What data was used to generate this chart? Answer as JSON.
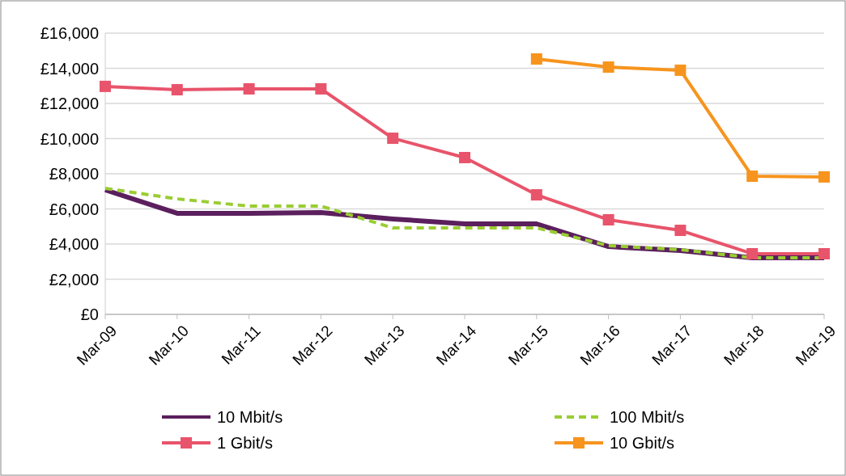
{
  "chart_data": {
    "type": "line",
    "categories": [
      "Mar-09",
      "Mar-10",
      "Mar-11",
      "Mar-12",
      "Mar-13",
      "Mar-14",
      "Mar-15",
      "Mar-16",
      "Mar-17",
      "Mar-18",
      "Mar-19"
    ],
    "series": [
      {
        "name": "10 Mbit/s",
        "color": "#5b1f5e",
        "marker": "none",
        "line_style": "solid",
        "values": [
          7080,
          5750,
          5750,
          5790,
          5430,
          5150,
          5150,
          3860,
          3630,
          3220,
          3220
        ]
      },
      {
        "name": "100 Mbit/s",
        "color": "#9acd32",
        "marker": "none",
        "line_style": "dashed",
        "values": [
          7170,
          6570,
          6160,
          6160,
          4920,
          4920,
          4920,
          3910,
          3680,
          3220,
          3220
        ]
      },
      {
        "name": "1 Gbit/s",
        "color": "#e8546b",
        "marker": "square",
        "line_style": "solid",
        "values": [
          12970,
          12780,
          12830,
          12830,
          10020,
          8920,
          6800,
          5380,
          4780,
          3450,
          3450
        ]
      },
      {
        "name": "10 Gbit/s",
        "color": "#f7941d",
        "marker": "square",
        "line_style": "solid",
        "values": [
          null,
          null,
          null,
          null,
          null,
          null,
          14530,
          14070,
          13890,
          7860,
          7820
        ]
      }
    ],
    "ylim": [
      0,
      16000
    ],
    "yticks": [
      {
        "value": 0,
        "label": "£0"
      },
      {
        "value": 2000,
        "label": "£2,000"
      },
      {
        "value": 4000,
        "label": "£4,000"
      },
      {
        "value": 6000,
        "label": "£6,000"
      },
      {
        "value": 8000,
        "label": "£8,000"
      },
      {
        "value": 10000,
        "label": "£10,000"
      },
      {
        "value": 12000,
        "label": "£12,000"
      },
      {
        "value": 14000,
        "label": "£14,000"
      },
      {
        "value": 16000,
        "label": "£16,000"
      }
    ],
    "grid": "y",
    "legend": "bottom"
  }
}
